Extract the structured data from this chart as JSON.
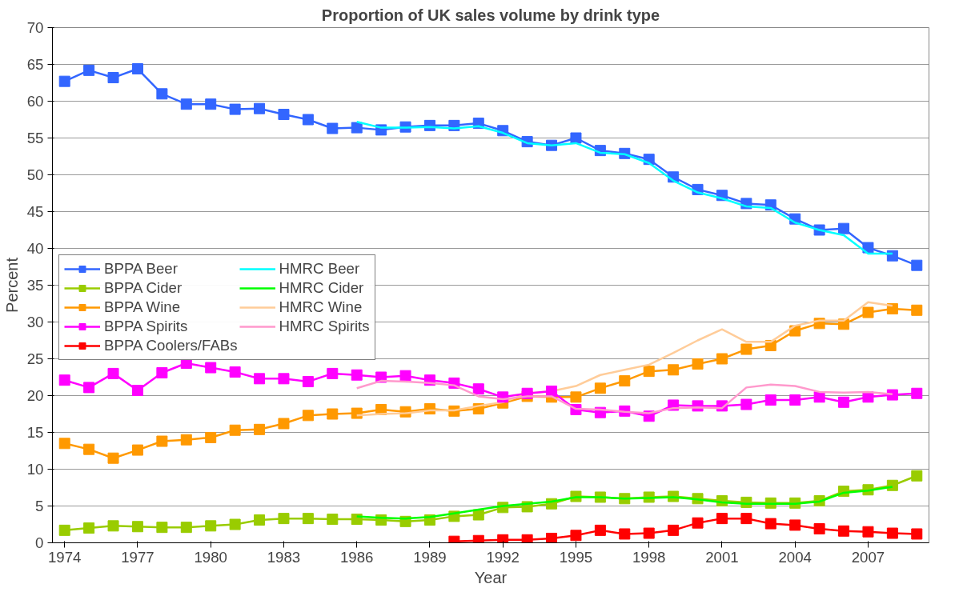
{
  "chart_data": {
    "type": "line",
    "title": "Proportion of UK sales volume by drink type",
    "xlabel": "Year",
    "ylabel": "Percent",
    "x": [
      1974,
      1975,
      1976,
      1977,
      1978,
      1979,
      1980,
      1981,
      1982,
      1983,
      1984,
      1985,
      1986,
      1987,
      1988,
      1989,
      1990,
      1991,
      1992,
      1993,
      1994,
      1995,
      1996,
      1997,
      1998,
      1999,
      2000,
      2001,
      2002,
      2003,
      2004,
      2005,
      2006,
      2007,
      2008,
      2009
    ],
    "xlim": [
      1973.5,
      2009.5
    ],
    "xticks": [
      1974,
      1977,
      1980,
      1983,
      1986,
      1989,
      1992,
      1995,
      1998,
      2001,
      2004,
      2007
    ],
    "ylim": [
      0,
      70
    ],
    "yticks": [
      0,
      5,
      10,
      15,
      20,
      25,
      30,
      35,
      40,
      45,
      50,
      55,
      60,
      65,
      70
    ],
    "grid": "y",
    "legend": "left",
    "line_style": "solid",
    "series": [
      {
        "name": "BPPA Beer",
        "color": "#3366ff",
        "marker": "square",
        "values": [
          62.7,
          64.2,
          63.2,
          64.4,
          61.0,
          59.6,
          59.6,
          58.9,
          59.0,
          58.2,
          57.5,
          56.3,
          56.4,
          56.1,
          56.5,
          56.7,
          56.7,
          57.0,
          56.0,
          54.5,
          54.0,
          55.0,
          53.3,
          52.9,
          52.1,
          49.7,
          48.0,
          47.2,
          46.1,
          45.9,
          44.0,
          42.5,
          42.7,
          40.1,
          39.0,
          37.7
        ]
      },
      {
        "name": "HMRC Beer",
        "color": "#00ffff",
        "marker": "none",
        "x": [
          1986,
          1987,
          1988,
          1989,
          1990,
          1991,
          1992,
          1993,
          1994,
          1995,
          1996,
          1997,
          1998,
          1999,
          2000,
          2001,
          2002,
          2003,
          2004,
          2005,
          2006,
          2007,
          2008
        ],
        "values": [
          57.2,
          56.4,
          56.4,
          56.5,
          56.3,
          56.6,
          55.7,
          54.3,
          54.0,
          54.3,
          53.0,
          52.8,
          51.6,
          49.2,
          47.6,
          46.8,
          45.7,
          45.5,
          43.5,
          42.5,
          41.8,
          39.3,
          39.3
        ]
      },
      {
        "name": "BPPA Cider",
        "color": "#99cc00",
        "marker": "square",
        "values": [
          1.7,
          2.0,
          2.3,
          2.2,
          2.1,
          2.1,
          2.3,
          2.5,
          3.1,
          3.3,
          3.3,
          3.2,
          3.2,
          3.1,
          2.9,
          3.1,
          3.6,
          3.8,
          4.8,
          4.9,
          5.3,
          6.3,
          6.2,
          6.0,
          6.2,
          6.3,
          6.0,
          5.7,
          5.5,
          5.4,
          5.4,
          5.7,
          7.0,
          7.2,
          7.8,
          9.1
        ]
      },
      {
        "name": "HMRC Cider",
        "color": "#00ff00",
        "marker": "none",
        "x": [
          1986,
          1987,
          1988,
          1989,
          1990,
          1991,
          1992,
          1993,
          1994,
          1995,
          1996,
          1997,
          1998,
          1999,
          2000,
          2001,
          2002,
          2003,
          2004,
          2005,
          2006,
          2007,
          2008
        ],
        "values": [
          3.6,
          3.4,
          3.3,
          3.5,
          4.0,
          4.5,
          5.0,
          5.3,
          5.6,
          6.2,
          6.2,
          6.0,
          6.1,
          6.2,
          5.9,
          5.5,
          5.3,
          5.3,
          5.3,
          5.6,
          6.8,
          7.1,
          7.6
        ]
      },
      {
        "name": "BPPA Wine",
        "color": "#ff9900",
        "marker": "square",
        "values": [
          13.5,
          12.7,
          11.5,
          12.6,
          13.8,
          14.0,
          14.3,
          15.3,
          15.4,
          16.2,
          17.3,
          17.5,
          17.6,
          18.1,
          17.8,
          18.2,
          17.9,
          18.2,
          19.0,
          19.9,
          19.8,
          19.8,
          21.0,
          22.0,
          23.3,
          23.5,
          24.3,
          25.0,
          26.3,
          26.8,
          28.8,
          29.8,
          29.7,
          31.3,
          31.8,
          31.6
        ]
      },
      {
        "name": "HMRC Wine",
        "color": "#ffcc99",
        "marker": "none",
        "x": [
          1986,
          1987,
          1988,
          1989,
          1990,
          1991,
          1992,
          1993,
          1994,
          1995,
          1996,
          1997,
          1998,
          1999,
          2000,
          2001,
          2002,
          2003,
          2004,
          2005,
          2006,
          2007,
          2008
        ],
        "values": [
          17.3,
          17.5,
          17.6,
          18.0,
          18.0,
          18.6,
          19.1,
          20.3,
          20.6,
          21.3,
          22.8,
          23.5,
          24.2,
          25.8,
          27.5,
          29.0,
          27.3,
          27.3,
          29.5,
          30.2,
          30.2,
          32.7,
          32.2
        ]
      },
      {
        "name": "BPPA Spirits",
        "color": "#ff00ff",
        "marker": "square",
        "values": [
          22.1,
          21.1,
          23.0,
          20.7,
          23.1,
          24.4,
          23.8,
          23.2,
          22.3,
          22.3,
          21.9,
          23.0,
          22.8,
          22.5,
          22.7,
          22.1,
          21.7,
          20.9,
          19.8,
          20.3,
          20.6,
          18.1,
          17.7,
          17.9,
          17.2,
          18.7,
          18.6,
          18.6,
          18.8,
          19.4,
          19.4,
          19.8,
          19.1,
          19.8,
          20.1,
          20.3
        ]
      },
      {
        "name": "HMRC Spirits",
        "color": "#ff99cc",
        "marker": "none",
        "x": [
          1986,
          1987,
          1988,
          1989,
          1990,
          1991,
          1992,
          1993,
          1994,
          1995,
          1996,
          1997,
          1998,
          1999,
          2000,
          2001,
          2002,
          2003,
          2004,
          2005,
          2006,
          2007,
          2008
        ],
        "values": [
          21.0,
          22.0,
          21.9,
          21.7,
          21.4,
          19.9,
          19.5,
          19.9,
          19.9,
          18.2,
          18.1,
          17.8,
          17.6,
          18.3,
          18.4,
          18.3,
          21.1,
          21.5,
          21.3,
          20.5,
          20.4,
          20.5,
          20.2
        ]
      },
      {
        "name": "BPPA Coolers/FABs",
        "color": "#ff0000",
        "marker": "square",
        "x": [
          1990,
          1991,
          1992,
          1993,
          1994,
          1995,
          1996,
          1997,
          1998,
          1999,
          2000,
          2001,
          2002,
          2003,
          2004,
          2005,
          2006,
          2007,
          2008,
          2009
        ],
        "values": [
          0.2,
          0.3,
          0.4,
          0.4,
          0.6,
          1.0,
          1.7,
          1.2,
          1.3,
          1.7,
          2.7,
          3.3,
          3.3,
          2.6,
          2.4,
          1.9,
          1.6,
          1.5,
          1.3,
          1.2
        ]
      }
    ]
  }
}
